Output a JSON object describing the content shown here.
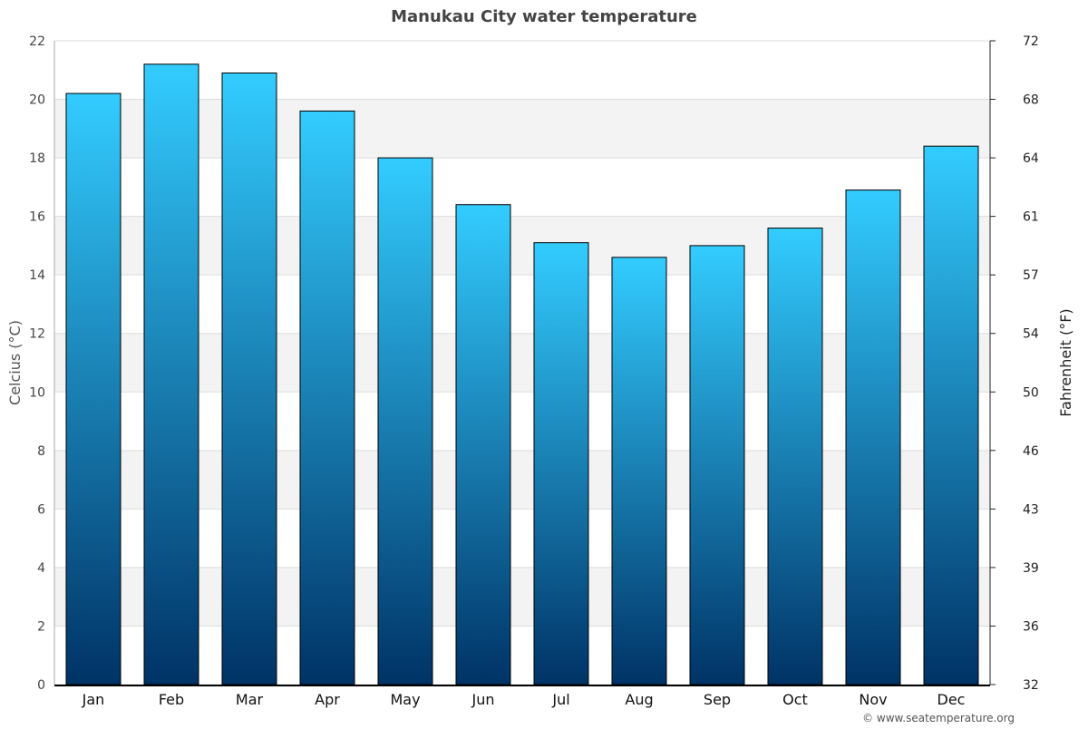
{
  "chart_data": {
    "type": "bar",
    "title": "Manukau City water temperature",
    "ylabel": "Celcius (°C)",
    "y2label": "Fahrenheit (°F)",
    "categories": [
      "Jan",
      "Feb",
      "Mar",
      "Apr",
      "May",
      "Jun",
      "Jul",
      "Aug",
      "Sep",
      "Oct",
      "Nov",
      "Dec"
    ],
    "values": [
      20.2,
      21.2,
      20.9,
      19.6,
      18.0,
      16.4,
      15.1,
      14.6,
      15.0,
      15.6,
      16.9,
      18.4
    ],
    "ylim": [
      0,
      22
    ],
    "yticks": [
      0,
      2,
      4,
      6,
      8,
      10,
      12,
      14,
      16,
      18,
      20,
      22
    ],
    "y2ticks": [
      32,
      36,
      39,
      43,
      46,
      50,
      54,
      57,
      61,
      64,
      68,
      72
    ],
    "grid": true,
    "colors": {
      "bar_top": "#33ccff",
      "bar_bottom": "#003366",
      "band": "#f3f3f3"
    }
  },
  "credit": "© www.seatemperature.org"
}
